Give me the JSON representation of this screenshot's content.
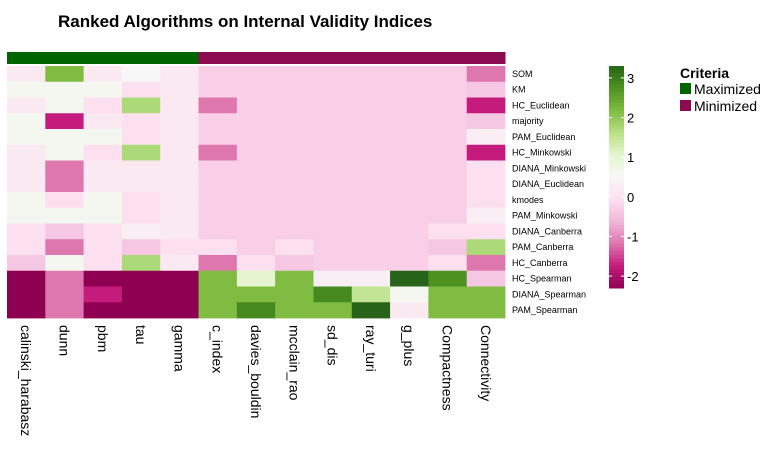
{
  "chart_data": {
    "type": "heatmap",
    "title": "Ranked Algorithms on Internal Validity Indices",
    "rows": [
      "SOM",
      "KM",
      "HC_Euclidean",
      "majority",
      "PAM_Euclidean",
      "HC_Minkowski",
      "DIANA_Minkowski",
      "DIANA_Euclidean",
      "kmodes",
      "PAM_Minkowski",
      "DIANA_Canberra",
      "PAM_Canberra",
      "HC_Canberra",
      "HC_Spearman",
      "DIANA_Spearman",
      "PAM_Spearman"
    ],
    "columns": [
      "calinski_harabasz",
      "dunn",
      "pbm",
      "tau",
      "gamma",
      "c_index",
      "davies_bouldin",
      "mcclain_rao",
      "sd_dis",
      "ray_turi",
      "g_plus",
      "Compactness",
      "Connectivity"
    ],
    "column_criteria": [
      "Maximized",
      "Maximized",
      "Maximized",
      "Maximized",
      "Maximized",
      "Minimized",
      "Minimized",
      "Minimized",
      "Minimized",
      "Minimized",
      "Minimized",
      "Minimized",
      "Minimized"
    ],
    "values": [
      [
        0.2,
        2.0,
        0.2,
        0.5,
        0.2,
        -0.2,
        -0.2,
        -0.2,
        -0.2,
        -0.2,
        -0.2,
        -0.2,
        -1.0
      ],
      [
        0.6,
        0.6,
        0.6,
        0.0,
        0.2,
        -0.2,
        -0.2,
        -0.2,
        -0.2,
        -0.2,
        -0.2,
        -0.2,
        -0.3
      ],
      [
        0.2,
        0.6,
        0.0,
        1.6,
        0.2,
        -1.0,
        -0.2,
        -0.2,
        -0.2,
        -0.2,
        -0.2,
        -0.2,
        -1.5
      ],
      [
        0.6,
        -1.5,
        0.2,
        0.0,
        0.2,
        -0.2,
        -0.2,
        -0.2,
        -0.2,
        -0.2,
        -0.2,
        -0.2,
        -0.3
      ],
      [
        0.6,
        0.6,
        0.6,
        0.0,
        0.2,
        -0.2,
        -0.2,
        -0.2,
        -0.2,
        -0.2,
        -0.2,
        -0.2,
        0.3
      ],
      [
        0.2,
        0.6,
        0.0,
        1.6,
        0.2,
        -1.0,
        -0.2,
        -0.2,
        -0.2,
        -0.2,
        -0.2,
        -0.2,
        -1.5
      ],
      [
        0.2,
        -1.0,
        0.2,
        0.2,
        0.2,
        -0.2,
        -0.2,
        -0.2,
        -0.2,
        -0.2,
        -0.2,
        -0.2,
        0.0
      ],
      [
        0.2,
        -1.0,
        0.2,
        0.2,
        0.2,
        -0.2,
        -0.2,
        -0.2,
        -0.2,
        -0.2,
        -0.2,
        -0.2,
        0.0
      ],
      [
        0.6,
        0.0,
        0.6,
        0.0,
        0.2,
        -0.2,
        -0.2,
        -0.2,
        -0.2,
        -0.2,
        -0.2,
        -0.2,
        0.0
      ],
      [
        0.6,
        0.6,
        0.6,
        0.0,
        0.2,
        -0.2,
        -0.2,
        -0.2,
        -0.2,
        -0.2,
        -0.2,
        -0.2,
        0.3
      ],
      [
        0.0,
        -0.3,
        0.0,
        0.3,
        0.2,
        -0.2,
        -0.2,
        -0.2,
        -0.2,
        -0.2,
        -0.2,
        0.0,
        0.0
      ],
      [
        0.0,
        -1.0,
        0.0,
        -0.3,
        0.0,
        0.0,
        -0.2,
        0.0,
        -0.2,
        -0.2,
        -0.2,
        -0.3,
        1.6
      ],
      [
        -0.3,
        0.6,
        0.0,
        1.6,
        0.2,
        -1.0,
        0.0,
        -0.3,
        -0.2,
        -0.2,
        -0.2,
        0.0,
        -1.0
      ],
      [
        -2.0,
        -1.0,
        -2.0,
        -2.0,
        -2.0,
        2.0,
        1.0,
        2.0,
        0.3,
        0.3,
        3.0,
        2.5,
        -0.3
      ],
      [
        -2.0,
        -1.0,
        -1.5,
        -2.0,
        -2.0,
        2.0,
        2.0,
        2.0,
        2.6,
        1.4,
        0.6,
        2.0,
        2.0
      ],
      [
        -2.0,
        -1.0,
        -2.0,
        -2.0,
        -2.0,
        2.0,
        2.6,
        2.0,
        2.0,
        3.0,
        0.2,
        2.0,
        2.0
      ]
    ],
    "color_scale": {
      "min": -2,
      "max": 3,
      "ticks": [
        3,
        2,
        1,
        0,
        -1,
        -2
      ],
      "colors": [
        "#8e0152",
        "#c51b7d",
        "#de77ae",
        "#f1b6da",
        "#fde0ef",
        "#f7f7f7",
        "#e6f5d0",
        "#b8e186",
        "#7fbc41",
        "#4d9221",
        "#276419"
      ]
    },
    "legend": {
      "title": "Criteria",
      "placement": "right",
      "entries": [
        {
          "label": "Maximized",
          "color": "#006400"
        },
        {
          "label": "Minimized",
          "color": "#8b0a50"
        }
      ]
    }
  }
}
